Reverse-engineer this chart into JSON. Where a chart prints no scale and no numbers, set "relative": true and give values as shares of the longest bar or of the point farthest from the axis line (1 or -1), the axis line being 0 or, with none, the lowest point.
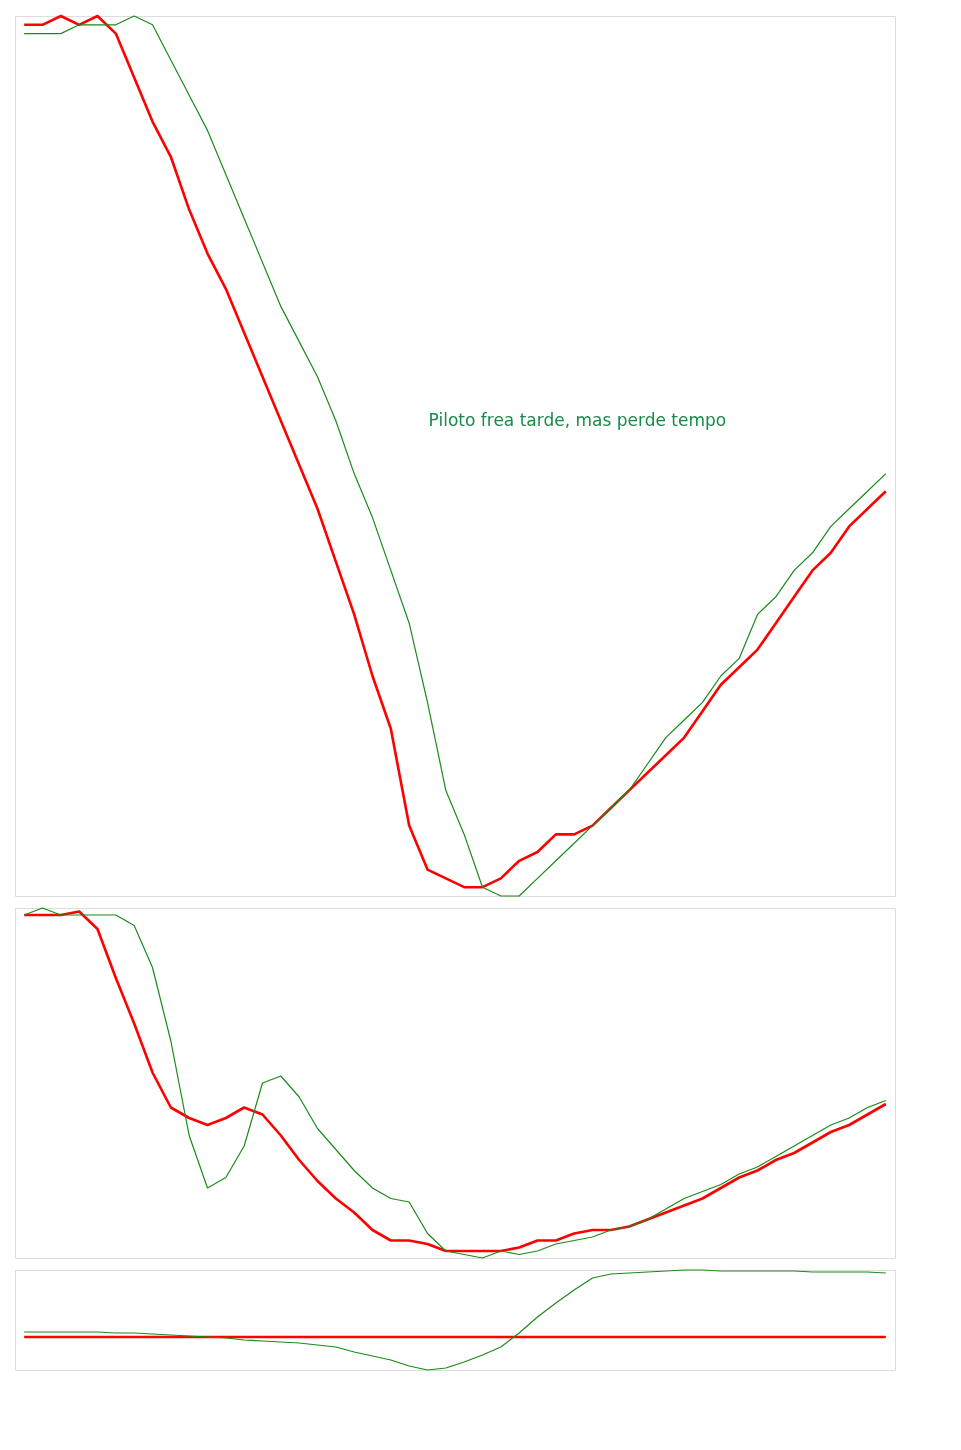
{
  "chart_data": [
    {
      "type": "line",
      "relative": true,
      "categories": [
        null,
        null,
        null,
        null,
        null,
        null,
        null,
        null,
        null,
        null,
        null,
        null,
        null,
        null,
        null,
        null,
        null,
        null,
        null,
        null,
        null,
        null,
        null,
        null,
        null,
        null,
        null,
        null,
        null,
        null,
        null,
        null,
        null,
        null,
        null,
        null,
        null,
        null,
        null,
        null,
        null,
        null,
        null,
        null,
        null,
        null,
        null,
        null
      ],
      "annotations": [
        "Piloto frea tarde, mas perde tempo"
      ],
      "series": [
        {
          "color": "#ff0000",
          "values": [
            0.99,
            0.99,
            1.0,
            0.99,
            1.0,
            0.98,
            0.93,
            0.88,
            0.84,
            0.78,
            0.73,
            0.69,
            0.64,
            0.59,
            0.54,
            0.49,
            0.44,
            0.38,
            0.32,
            0.25,
            0.19,
            0.08,
            0.03,
            0.02,
            0.01,
            0.01,
            0.02,
            0.04,
            0.05,
            0.07,
            0.07,
            0.08,
            0.1,
            0.12,
            0.14,
            0.16,
            0.18,
            0.21,
            0.24,
            0.26,
            0.28,
            0.31,
            0.34,
            0.37,
            0.39,
            0.42,
            0.44,
            0.46
          ]
        },
        {
          "color": "#1a8a1a",
          "values": [
            0.98,
            0.98,
            0.98,
            0.99,
            0.99,
            0.99,
            1.0,
            0.99,
            0.95,
            0.91,
            0.87,
            0.82,
            0.77,
            0.72,
            0.67,
            0.63,
            0.59,
            0.54,
            0.48,
            0.43,
            0.37,
            0.31,
            0.22,
            0.12,
            0.07,
            0.01,
            0.0,
            0.0,
            0.02,
            0.04,
            0.06,
            0.08,
            0.1,
            0.12,
            0.15,
            0.18,
            0.2,
            0.22,
            0.25,
            0.27,
            0.32,
            0.34,
            0.37,
            0.39,
            0.42,
            0.44,
            0.46,
            0.48
          ]
        }
      ]
    },
    {
      "type": "line",
      "relative": true,
      "categories": [
        null,
        null,
        null,
        null,
        null,
        null,
        null,
        null,
        null,
        null,
        null,
        null,
        null,
        null,
        null,
        null,
        null,
        null,
        null,
        null,
        null,
        null,
        null,
        null,
        null,
        null,
        null,
        null,
        null,
        null,
        null,
        null,
        null,
        null,
        null,
        null,
        null,
        null,
        null,
        null,
        null,
        null,
        null,
        null,
        null,
        null,
        null,
        null
      ],
      "series": [
        {
          "color": "#ff0000",
          "values": [
            0.98,
            0.98,
            0.98,
            0.99,
            0.94,
            0.8,
            0.67,
            0.53,
            0.43,
            0.4,
            0.38,
            0.4,
            0.43,
            0.41,
            0.35,
            0.28,
            0.22,
            0.17,
            0.13,
            0.08,
            0.05,
            0.05,
            0.04,
            0.02,
            0.02,
            0.02,
            0.02,
            0.03,
            0.05,
            0.05,
            0.07,
            0.08,
            0.08,
            0.09,
            0.11,
            0.13,
            0.15,
            0.17,
            0.2,
            0.23,
            0.25,
            0.28,
            0.3,
            0.33,
            0.36,
            0.38,
            0.41,
            0.44
          ]
        },
        {
          "color": "#1a8a1a",
          "values": [
            0.98,
            1.0,
            0.98,
            0.98,
            0.98,
            0.98,
            0.95,
            0.83,
            0.62,
            0.35,
            0.2,
            0.23,
            0.32,
            0.5,
            0.52,
            0.46,
            0.37,
            0.31,
            0.25,
            0.2,
            0.17,
            0.16,
            0.07,
            0.02,
            0.01,
            0.0,
            0.02,
            0.01,
            0.02,
            0.04,
            0.05,
            0.06,
            0.08,
            0.09,
            0.11,
            0.14,
            0.17,
            0.19,
            0.21,
            0.24,
            0.26,
            0.29,
            0.32,
            0.35,
            0.38,
            0.4,
            0.43,
            0.45
          ]
        }
      ]
    },
    {
      "type": "line",
      "relative": true,
      "categories": [
        null,
        null,
        null,
        null,
        null,
        null,
        null,
        null,
        null,
        null,
        null,
        null,
        null,
        null,
        null,
        null,
        null,
        null,
        null,
        null,
        null,
        null,
        null,
        null,
        null,
        null,
        null,
        null,
        null,
        null,
        null,
        null,
        null,
        null,
        null,
        null,
        null,
        null,
        null,
        null,
        null,
        null,
        null,
        null,
        null,
        null,
        null,
        null
      ],
      "series": [
        {
          "color": "#ff0000",
          "values": [
            0.33,
            0.33,
            0.33,
            0.33,
            0.33,
            0.33,
            0.33,
            0.33,
            0.33,
            0.33,
            0.33,
            0.33,
            0.33,
            0.33,
            0.33,
            0.33,
            0.33,
            0.33,
            0.33,
            0.33,
            0.33,
            0.33,
            0.33,
            0.33,
            0.33,
            0.33,
            0.33,
            0.33,
            0.33,
            0.33,
            0.33,
            0.33,
            0.33,
            0.33,
            0.33,
            0.33,
            0.33,
            0.33,
            0.33,
            0.33,
            0.33,
            0.33,
            0.33,
            0.33,
            0.33,
            0.33,
            0.33,
            0.33
          ]
        },
        {
          "color": "#1a8a1a",
          "values": [
            0.38,
            0.38,
            0.38,
            0.38,
            0.38,
            0.37,
            0.37,
            0.36,
            0.35,
            0.34,
            0.33,
            0.32,
            0.3,
            0.29,
            0.28,
            0.27,
            0.25,
            0.23,
            0.18,
            0.14,
            0.1,
            0.04,
            0.0,
            0.02,
            0.08,
            0.15,
            0.23,
            0.37,
            0.53,
            0.67,
            0.8,
            0.92,
            0.96,
            0.97,
            0.98,
            0.99,
            1.0,
            1.0,
            0.99,
            0.99,
            0.99,
            0.99,
            0.99,
            0.98,
            0.98,
            0.98,
            0.98,
            0.97
          ]
        }
      ]
    }
  ]
}
